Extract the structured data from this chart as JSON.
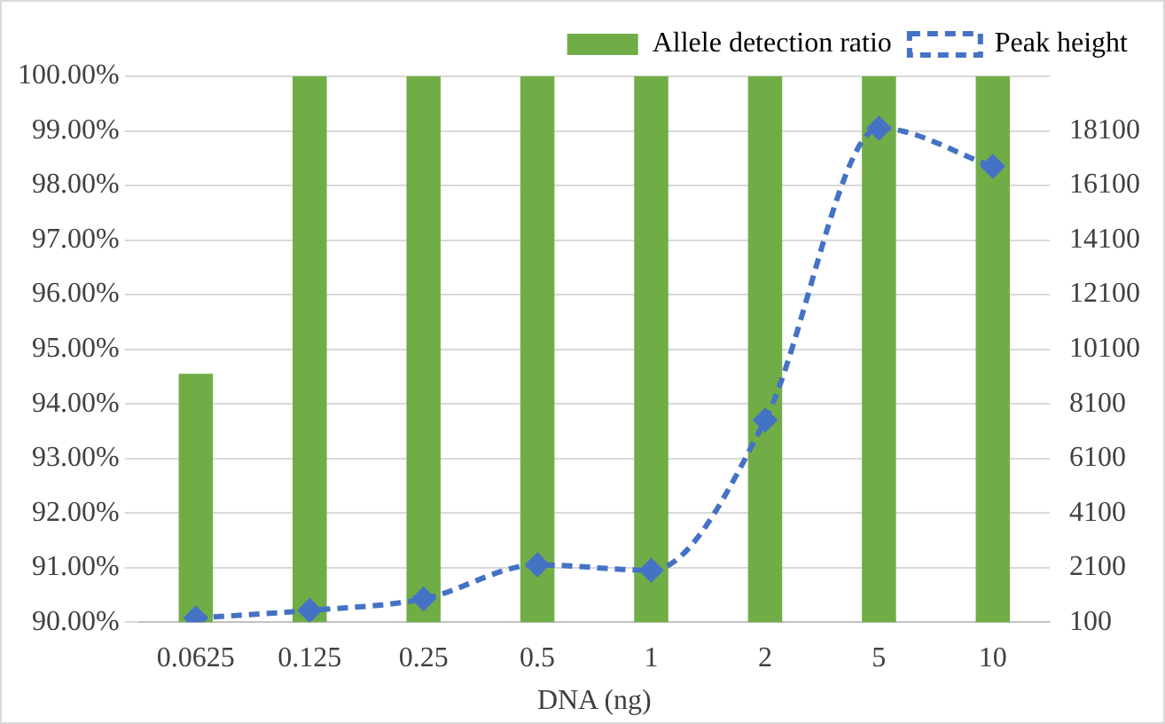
{
  "chart_data": {
    "type": "bar",
    "xlabel": "DNA (ng)",
    "categories": [
      "0.0625",
      "0.125",
      "0.25",
      "0.5",
      "1",
      "2",
      "5",
      "10"
    ],
    "series": [
      {
        "name": "Allele detection ratio",
        "color": "#70ad47",
        "values": [
          94.55,
          100,
          100,
          100,
          100,
          100,
          100,
          100
        ]
      },
      {
        "name": "Peak height",
        "type": "line",
        "axis": "y2",
        "color": "#4472c4",
        "marker": "diamond",
        "line_style": "dashed",
        "values": [
          250,
          530,
          950,
          2200,
          2000,
          7500,
          18200,
          16800
        ]
      }
    ],
    "ylim": [
      90,
      100
    ],
    "yticks": [
      {
        "value": 90,
        "label": "90.00%"
      },
      {
        "value": 91,
        "label": "91.00%"
      },
      {
        "value": 92,
        "label": "92.00%"
      },
      {
        "value": 93,
        "label": "93.00%"
      },
      {
        "value": 94,
        "label": "94.00%"
      },
      {
        "value": 95,
        "label": "95.00%"
      },
      {
        "value": 96,
        "label": "96.00%"
      },
      {
        "value": 97,
        "label": "97.00%"
      },
      {
        "value": 98,
        "label": "98.00%"
      },
      {
        "value": 99,
        "label": "99.00%"
      },
      {
        "value": 100,
        "label": "100.00%"
      }
    ],
    "y2lim": [
      100,
      20100
    ],
    "y2ticks": [
      100,
      2100,
      4100,
      6100,
      8100,
      10100,
      12100,
      14100,
      16100,
      18100
    ],
    "grid": "y",
    "legend": "top right"
  }
}
